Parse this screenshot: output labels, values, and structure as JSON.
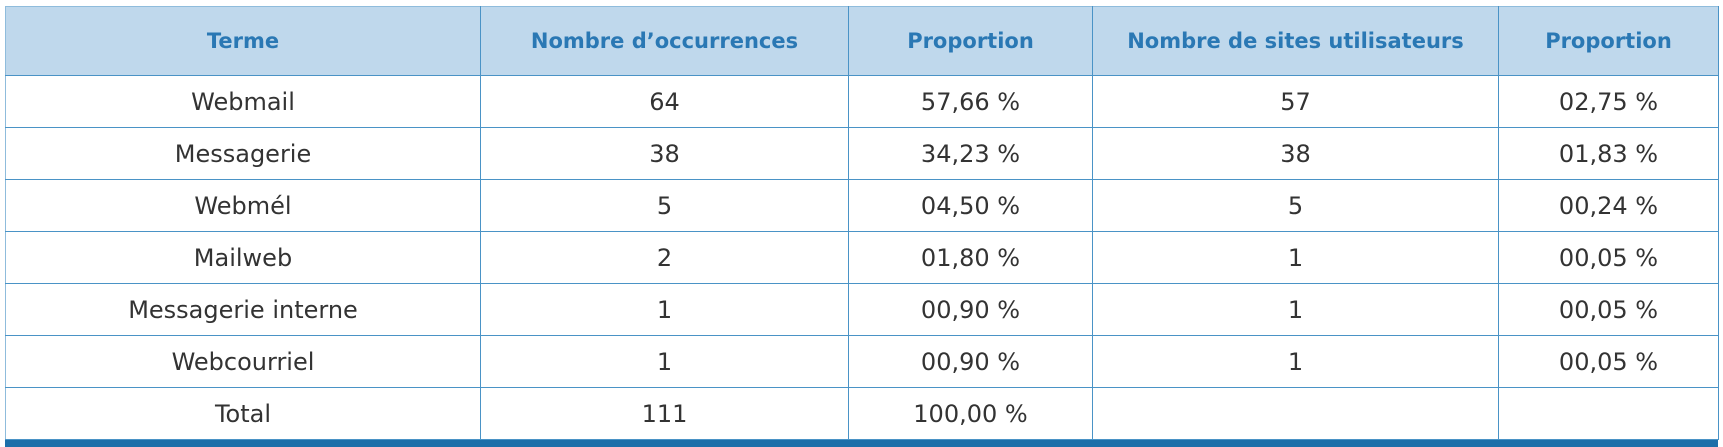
{
  "table": {
    "columns": [
      "Terme",
      "Nombre d’occurrences",
      "Proportion",
      "Nombre de sites utilisateurs",
      "Proportion"
    ],
    "rows": [
      [
        "Webmail",
        "64",
        "57,66 %",
        "57",
        "02,75 %"
      ],
      [
        "Messagerie",
        "38",
        "34,23 %",
        "38",
        "01,83 %"
      ],
      [
        "Webmél",
        "5",
        "04,50 %",
        "5",
        "00,24 %"
      ],
      [
        "Mailweb",
        "2",
        "01,80 %",
        "1",
        "00,05 %"
      ],
      [
        "Messagerie interne",
        "1",
        "00,90 %",
        "1",
        "00,05 %"
      ],
      [
        "Webcourriel",
        "1",
        "00,90 %",
        "1",
        "00,05 %"
      ],
      [
        "Total",
        "111",
        "100,00 %"
      ]
    ]
  }
}
